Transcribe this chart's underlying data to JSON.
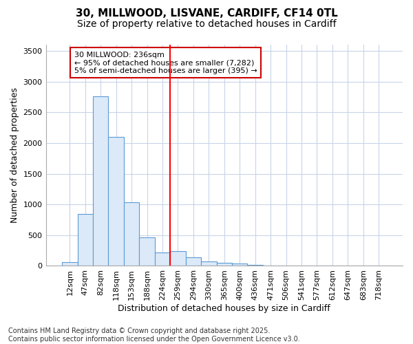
{
  "title_line1": "30, MILLWOOD, LISVANE, CARDIFF, CF14 0TL",
  "title_line2": "Size of property relative to detached houses in Cardiff",
  "xlabel": "Distribution of detached houses by size in Cardiff",
  "ylabel": "Number of detached properties",
  "categories": [
    "12sqm",
    "47sqm",
    "82sqm",
    "118sqm",
    "153sqm",
    "188sqm",
    "224sqm",
    "259sqm",
    "294sqm",
    "330sqm",
    "365sqm",
    "400sqm",
    "436sqm",
    "471sqm",
    "506sqm",
    "541sqm",
    "577sqm",
    "612sqm",
    "647sqm",
    "683sqm",
    "718sqm"
  ],
  "values": [
    60,
    850,
    2760,
    2100,
    1030,
    460,
    220,
    235,
    145,
    70,
    55,
    35,
    20,
    5,
    0,
    0,
    0,
    0,
    0,
    0,
    0
  ],
  "bar_color": "#dce9f8",
  "bar_edge_color": "#5b9bd5",
  "vline_x": 6.5,
  "vline_color": "#ff0000",
  "annotation_text": "30 MILLWOOD: 236sqm\n← 95% of detached houses are smaller (7,282)\n5% of semi-detached houses are larger (395) →",
  "annotation_box_color": "#ffffff",
  "annotation_box_edge": "#cc0000",
  "ylim": [
    0,
    3600
  ],
  "yticks": [
    0,
    500,
    1000,
    1500,
    2000,
    2500,
    3000,
    3500
  ],
  "background_color": "#ffffff",
  "plot_bg_color": "#ffffff",
  "grid_color": "#c8d4e8",
  "footer_line1": "Contains HM Land Registry data © Crown copyright and database right 2025.",
  "footer_line2": "Contains public sector information licensed under the Open Government Licence v3.0.",
  "title_fontsize": 11,
  "subtitle_fontsize": 10,
  "axis_label_fontsize": 9,
  "tick_fontsize": 8,
  "annotation_fontsize": 8,
  "footer_fontsize": 7
}
